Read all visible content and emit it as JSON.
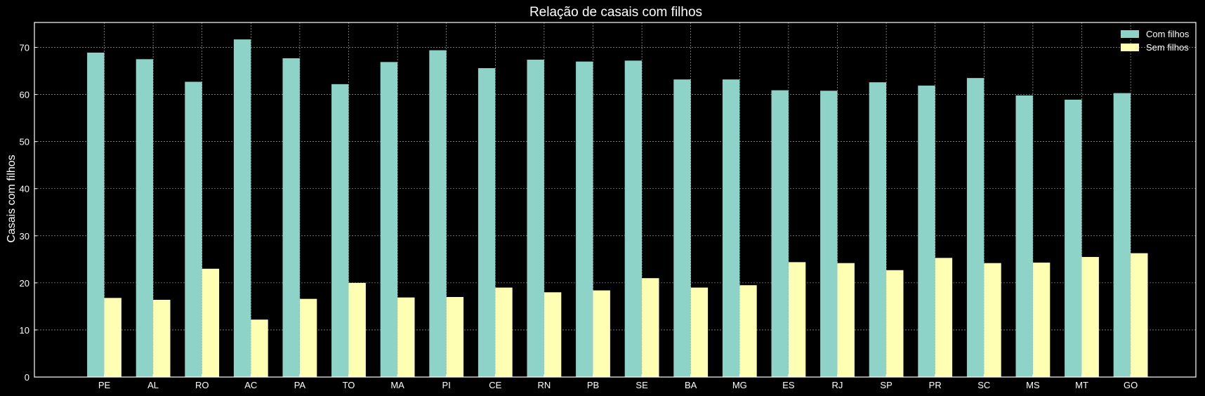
{
  "chart_data": {
    "type": "bar",
    "title": "Relação de casais com filhos",
    "xlabel": "",
    "ylabel": "Casais com filhos",
    "categories": [
      "PE",
      "AL",
      "RO",
      "AC",
      "PA",
      "TO",
      "MA",
      "PI",
      "CE",
      "RN",
      "PB",
      "SE",
      "BA",
      "MG",
      "ES",
      "RJ",
      "SP",
      "PR",
      "SC",
      "MS",
      "MT",
      "GO"
    ],
    "series": [
      {
        "name": "Com filhos",
        "color": "#8dd3c7",
        "values": [
          68.9,
          67.5,
          62.7,
          71.7,
          67.7,
          62.2,
          66.9,
          69.4,
          65.6,
          67.4,
          67.0,
          67.2,
          63.2,
          63.2,
          60.9,
          60.8,
          62.6,
          61.9,
          63.5,
          59.8,
          58.9,
          60.3
        ]
      },
      {
        "name": "Sem filhos",
        "color": "#ffffb3",
        "values": [
          16.8,
          16.4,
          23.0,
          12.2,
          16.6,
          20.0,
          16.9,
          17.0,
          19.0,
          18.0,
          18.4,
          21.0,
          19.0,
          19.5,
          24.4,
          24.2,
          22.7,
          25.3,
          24.2,
          24.3,
          25.5,
          26.3
        ]
      }
    ],
    "yticks": [
      0,
      10,
      20,
      30,
      40,
      50,
      60,
      70
    ],
    "ylim": [
      0,
      75.3
    ],
    "grid": true,
    "legend": "top-right",
    "style": {
      "background": "#000000",
      "grid_color": "#ffffff",
      "text_color": "#ffffff"
    }
  }
}
